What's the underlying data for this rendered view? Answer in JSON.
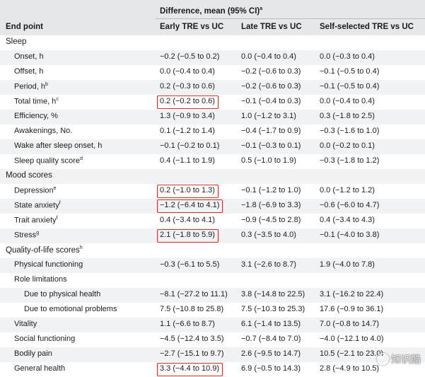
{
  "header": {
    "group_label": "Difference, mean (95% CI)",
    "group_label_sup": "a",
    "columns": [
      "End point",
      "Early TRE vs UC",
      "Late TRE vs UC",
      "Self-selected TRE vs UC"
    ]
  },
  "rows": [
    {
      "label": "Sleep",
      "level": 0
    },
    {
      "label": "Onset, h",
      "level": 1,
      "values": [
        "−0.2 (−0.5 to 0.2)",
        "0.0 (−0.4 to 0.4)",
        "0.0 (−0.3 to 0.4)"
      ]
    },
    {
      "label": "Offset, h",
      "level": 1,
      "values": [
        "0.0 (−0.4 to 0.4)",
        "−0.2 (−0.6 to 0.3)",
        "−0.1 (−0.5 to 0.4)"
      ]
    },
    {
      "label": "Period, h",
      "sup": "b",
      "level": 1,
      "values": [
        "0.2 (−0.3 to 0.6)",
        "−0.2 (−0.6 to 0.3)",
        "−0.1 (−0.5 to 0.4)"
      ]
    },
    {
      "label": "Total time, h",
      "sup": "c",
      "level": 1,
      "highlight": true,
      "values": [
        "0.2 (−0.2 to 0.6)",
        "−0.1 (−0.4 to 0.3)",
        "0.0 (−0.4 to 0.4)"
      ]
    },
    {
      "label": "Efficiency, %",
      "level": 1,
      "values": [
        "1.3 (−0.9 to 3.4)",
        "1.0 (−1.2 to 3.1)",
        "0.3 (−1.8 to 2.5)"
      ]
    },
    {
      "label": "Awakenings, No.",
      "level": 1,
      "values": [
        "0.1 (−1.2 to 1.4)",
        "−0.4 (−1.7 to 0.9)",
        "−0.3 (−1.6 to 1.0)"
      ]
    },
    {
      "label": "Wake after sleep onset, h",
      "level": 1,
      "values": [
        "−0.1 (−0.2 to 0.1)",
        "−0.1 (−0.3 to 0.1)",
        "0.0 (−0.2 to 0.1)"
      ]
    },
    {
      "label": "Sleep quality score",
      "sup": "d",
      "level": 1,
      "values": [
        "0.4 (−1.1 to 1.9)",
        "0.5 (−1.0 to 1.9)",
        "−0.3 (−1.8 to 1.2)"
      ]
    },
    {
      "label": "Mood scores",
      "level": 0
    },
    {
      "label": "Depression",
      "sup": "e",
      "level": 1,
      "highlight": true,
      "values": [
        "0.2 (−1.0 to 1.3)",
        "−0.1 (−1.2 to 1.0)",
        "0.0 (−1.2 to 1.2)"
      ]
    },
    {
      "label": "State anxiety",
      "sup": "f",
      "level": 1,
      "highlight": true,
      "values": [
        "−1.2 (−6.4 to 4.1)",
        "−1.8 (−6.9 to 3.3)",
        "−0.6 (−6.0 to 4.7)"
      ]
    },
    {
      "label": "Trait anxiety",
      "sup": "f",
      "level": 1,
      "values": [
        "0.4 (−3.4 to 4.1)",
        "−0.9 (−4.5 to 2.8)",
        "0.4 (−3.4 to 4.3)"
      ]
    },
    {
      "label": "Stress",
      "sup": "g",
      "level": 1,
      "highlight": true,
      "values": [
        "2.1 (−1.8 to 5.9)",
        "0.3 (−3.5 to 4.0)",
        "−0.1 (−4.0 to 3.8)"
      ]
    },
    {
      "label": "Quality-of-life scores",
      "sup": "h",
      "level": 0
    },
    {
      "label": "Physical functioning",
      "level": 1,
      "values": [
        "−0.3 (−6.1 to 5.5)",
        "3.1 (−2.6 to 8.7)",
        "1.9 (−4.0 to 7.8)"
      ]
    },
    {
      "label": "Role limitations",
      "level": 1
    },
    {
      "label": "Due to physical health",
      "level": 2,
      "values": [
        "−8.1 (−27.2 to 11.1)",
        "3.8 (−14.8 to 22.5)",
        "3.1 (−16.2 to 22.4)"
      ]
    },
    {
      "label": "Due to emotional problems",
      "level": 2,
      "values": [
        "7.5 (−10.8 to 25.8)",
        "7.5 (−10.3 to 25.3)",
        "17.6 (−0.9 to 36.1)"
      ]
    },
    {
      "label": "Vitality",
      "level": 1,
      "values": [
        "1.1 (−6.6 to 8.7)",
        "6.1 (−1.4 to 13.5)",
        "7.0 (−0.8 to 14.7)"
      ]
    },
    {
      "label": "Social functioning",
      "level": 1,
      "values": [
        "−4.5 (−12.4 to 3.5)",
        "−0.7 (−8.4 to 7.0)",
        "−4.0 (−12.1 to 4.0)"
      ]
    },
    {
      "label": "Bodily pain",
      "level": 1,
      "values": [
        "−2.7 (−15.1 to 9.7)",
        "2.6 (−9.5 to 14.7)",
        "10.5 (−2.1 to 23.0)"
      ]
    },
    {
      "label": "General health",
      "level": 1,
      "highlight": true,
      "values": [
        "3.3 (−4.4 to 10.9)",
        "6.9 (−0.5 to 14.3)",
        "2.8 (−4.9 to 10.5)"
      ]
    }
  ],
  "watermark": "知识酷",
  "colors": {
    "header_band": "#e6e7e8",
    "stripe": "#f1f2f3",
    "highlight_border": "#d0302b"
  }
}
